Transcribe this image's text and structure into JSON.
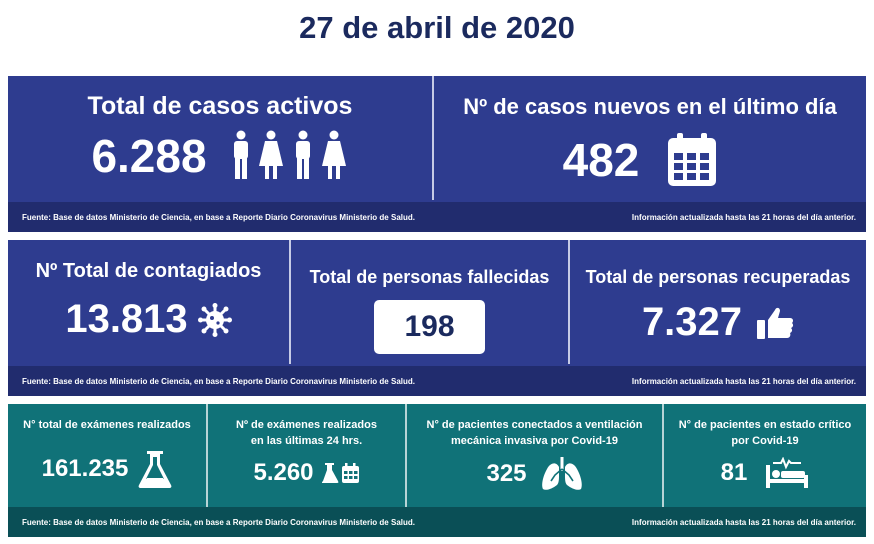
{
  "header": {
    "date": "27 de abril de 2020"
  },
  "colors": {
    "title": "#1b2a5e",
    "panel_blue": "#2e3c8f",
    "footer_blue": "#212c6e",
    "panel_teal": "#107278",
    "footer_teal": "#0a4f56"
  },
  "section1": {
    "active": {
      "label": "Total de casos activos",
      "value": "6.288",
      "icon": "people-icon"
    },
    "new": {
      "label": "Nº de casos nuevos en el último día",
      "value": "482",
      "icon": "calendar-icon"
    },
    "source": "Fuente: Base de datos Ministerio de Ciencia, en base a Reporte Diario Coronavirus Ministerio de Salud.",
    "updated": "Información actualizada hasta las 21 horas  del día anterior."
  },
  "section2": {
    "infected": {
      "label": "Nº Total de contagiados",
      "value": "13.813",
      "icon": "virus-icon"
    },
    "deceased": {
      "label": "Total de personas fallecidas",
      "value": "198"
    },
    "recovered": {
      "label": "Total de personas recuperadas",
      "value": "7.327",
      "icon": "thumbs-up-icon"
    },
    "source": "Fuente: Base de datos Ministerio de Ciencia, en base a Reporte Diario Coronavirus Ministerio de Salud.",
    "updated": "Información actualizada hasta las 21 horas  del día anterior."
  },
  "section3": {
    "exams_total": {
      "label": "N° total de exámenes realizados",
      "value": "161.235",
      "icon": "flask-icon"
    },
    "exams_24h": {
      "label_line1": "Nº de exámenes realizados",
      "label_line2": "en las últimas 24 hrs.",
      "value": "5.260",
      "icon": "flask-calendar-icon"
    },
    "ventilation": {
      "label_line1": "N° de pacientes conectados a ventilación",
      "label_line2": "mecánica invasiva por Covid-19",
      "value": "325",
      "icon": "lungs-icon"
    },
    "critical": {
      "label_line1": "N° de pacientes en estado crítico",
      "label_line2": "por Covid-19",
      "value": "81",
      "icon": "hospital-bed-icon"
    },
    "source": "Fuente: Base de datos Ministerio de Ciencia, en base a Reporte Diario Coronavirus Ministerio de Salud.",
    "updated": "Información actualizada hasta las 21 horas  del día anterior."
  }
}
